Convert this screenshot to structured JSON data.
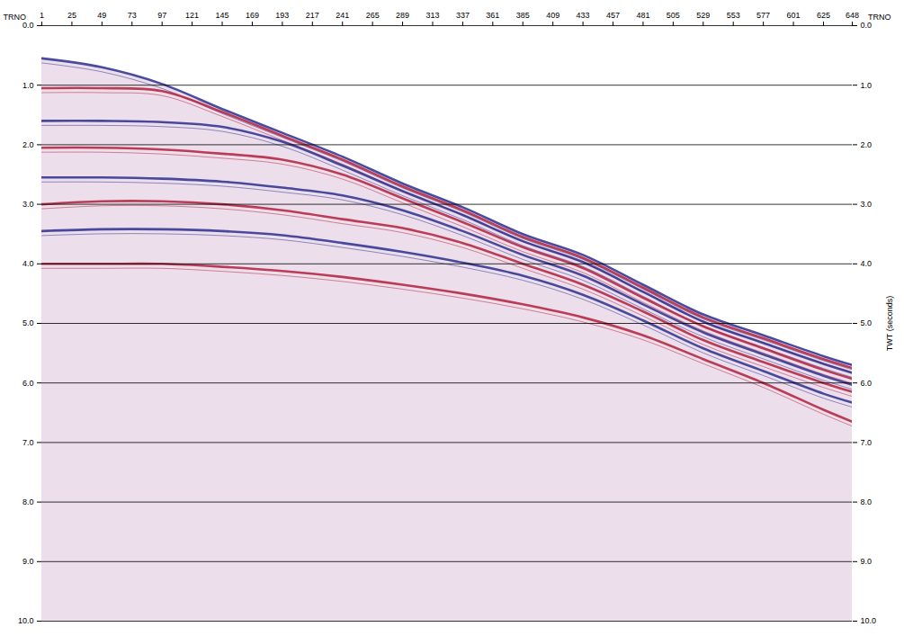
{
  "chart_data": {
    "type": "seismic",
    "x_label": "TRNO",
    "y_label": "TWT (seconds)",
    "xlim": [
      1,
      648
    ],
    "xticks": [
      1,
      25,
      49,
      73,
      97,
      121,
      145,
      169,
      193,
      217,
      241,
      265,
      289,
      313,
      337,
      361,
      385,
      409,
      433,
      457,
      481,
      505,
      529,
      553,
      577,
      601,
      625,
      648
    ],
    "ylim": [
      0,
      10
    ],
    "yticks": [
      {
        "value": 0,
        "label": "0.0"
      },
      {
        "value": 1,
        "label": "1.0"
      },
      {
        "value": 2,
        "label": "2.0"
      },
      {
        "value": 3,
        "label": "3.0"
      },
      {
        "value": 4,
        "label": "4.0"
      },
      {
        "value": 5,
        "label": "5.0"
      },
      {
        "value": 6,
        "label": "6.0"
      },
      {
        "value": 7,
        "label": "7.0"
      },
      {
        "value": 8,
        "label": "8.0"
      },
      {
        "value": 9,
        "label": "9.0"
      },
      {
        "value": 10,
        "label": "10.0"
      }
    ],
    "grid": true,
    "x": [
      1,
      49,
      97,
      145,
      193,
      241,
      289,
      337,
      385,
      433,
      481,
      529,
      577,
      625,
      648
    ],
    "series": [
      {
        "type": "area",
        "color": "#c9a0c4",
        "values": [
          0.55,
          0.7,
          0.98,
          1.4,
          1.8,
          2.2,
          2.65,
          3.05,
          3.5,
          3.85,
          4.35,
          4.85,
          5.2,
          5.55,
          5.7
        ]
      },
      {
        "type": "line",
        "color": "#2b2f8f",
        "values": [
          0.55,
          0.7,
          0.98,
          1.4,
          1.8,
          2.2,
          2.65,
          3.05,
          3.5,
          3.85,
          4.35,
          4.85,
          5.2,
          5.55,
          5.7
        ]
      },
      {
        "type": "line",
        "color": "#b3203c",
        "values": [
          1.05,
          1.05,
          1.1,
          1.45,
          1.85,
          2.25,
          2.7,
          3.1,
          3.55,
          3.9,
          4.4,
          4.9,
          5.25,
          5.6,
          5.75
        ]
      },
      {
        "type": "line",
        "color": "#2b2f8f",
        "values": [
          1.6,
          1.6,
          1.62,
          1.7,
          1.95,
          2.35,
          2.78,
          3.18,
          3.62,
          3.97,
          4.47,
          4.97,
          5.33,
          5.68,
          5.83
        ]
      },
      {
        "type": "line",
        "color": "#b3203c",
        "values": [
          2.05,
          2.05,
          2.08,
          2.15,
          2.25,
          2.5,
          2.9,
          3.3,
          3.72,
          4.07,
          4.57,
          5.05,
          5.42,
          5.78,
          5.93
        ]
      },
      {
        "type": "line",
        "color": "#2b2f8f",
        "values": [
          2.55,
          2.55,
          2.57,
          2.62,
          2.72,
          2.85,
          3.1,
          3.45,
          3.85,
          4.2,
          4.68,
          5.15,
          5.52,
          5.88,
          6.03
        ]
      },
      {
        "type": "line",
        "color": "#b3203c",
        "values": [
          3.0,
          2.95,
          2.95,
          3.0,
          3.1,
          3.25,
          3.4,
          3.65,
          4.0,
          4.35,
          4.8,
          5.28,
          5.65,
          6.0,
          6.15
        ]
      },
      {
        "type": "line",
        "color": "#2b2f8f",
        "values": [
          3.45,
          3.42,
          3.42,
          3.45,
          3.52,
          3.65,
          3.8,
          3.98,
          4.2,
          4.52,
          4.95,
          5.42,
          5.8,
          6.18,
          6.33
        ]
      },
      {
        "type": "line",
        "color": "#b3203c",
        "values": [
          4.0,
          4.0,
          4.0,
          4.05,
          4.12,
          4.22,
          4.35,
          4.5,
          4.68,
          4.9,
          5.2,
          5.6,
          6.0,
          6.45,
          6.65
        ]
      }
    ]
  }
}
